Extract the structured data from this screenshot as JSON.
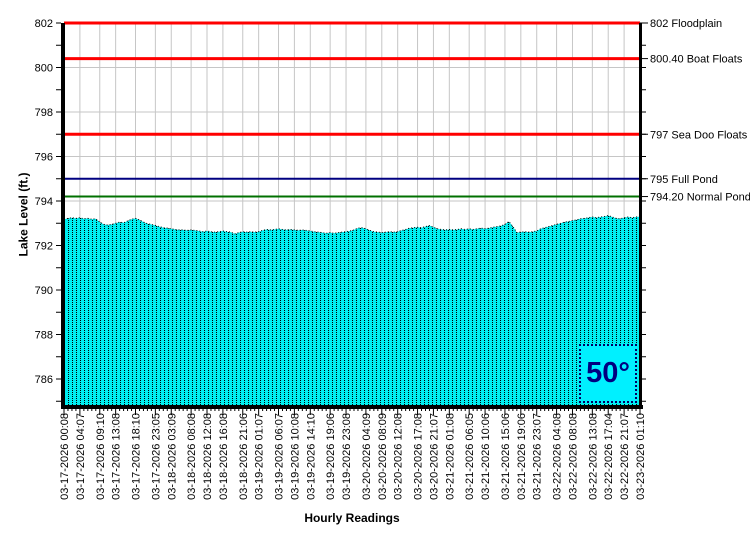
{
  "chart_data": {
    "type": "area",
    "title": "",
    "xlabel": "Hourly Readings",
    "ylabel": "Lake Level (ft.)",
    "ylim": [
      784.8,
      802
    ],
    "y_labeled_ticks": [
      786,
      788,
      790,
      792,
      794,
      796,
      798,
      800,
      802
    ],
    "y_minor_tick_step": 1,
    "grid": true,
    "legend": "none",
    "temperature": "50°",
    "x_tick_hours": [
      0,
      4,
      9,
      13,
      18,
      23,
      27,
      32,
      36,
      40,
      45,
      49,
      54,
      58,
      62,
      67,
      71,
      76,
      80,
      84,
      89,
      93,
      97,
      102,
      106,
      111,
      115,
      119,
      124,
      128,
      133,
      137,
      141,
      145
    ],
    "x_tick_labels": [
      "03-17-2026 00:08",
      "03-17-2026 04:07",
      "03-17-2026 09:10",
      "03-17-2026 13:08",
      "03-17-2026 18:10",
      "03-17-2026 23:05",
      "03-18-2026 03:09",
      "03-18-2026 08:08",
      "03-18-2026 12:08",
      "03-18-2026 16:08",
      "03-18-2026 21:06",
      "03-19-2026 01:07",
      "03-19-2026 06:07",
      "03-19-2026 10:08",
      "03-19-2026 14:10",
      "03-19-2026 19:06",
      "03-19-2026 23:08",
      "03-20-2026 04:09",
      "03-20-2026 08:09",
      "03-20-2026 12:08",
      "03-20-2026 17:08",
      "03-20-2026 21:07",
      "03-21-2026 01:08",
      "03-21-2026 06:05",
      "03-21-2026 10:06",
      "03-21-2026 15:06",
      "03-21-2026 19:06",
      "03-21-2026 23:07",
      "03-22-2026 04:08",
      "03-22-2026 08:08",
      "03-22-2026 13:08",
      "03-22-2026 17:04",
      "03-22-2026 21:07",
      "03-23-2026 01:10"
    ],
    "series": [
      {
        "name": "Lake Level (ft.)",
        "sampling": "hourly",
        "values": [
          793.18,
          793.22,
          793.25,
          793.22,
          793.25,
          793.2,
          793.22,
          793.18,
          793.2,
          793.05,
          792.95,
          792.92,
          792.95,
          793.0,
          793.05,
          793.02,
          793.1,
          793.18,
          793.22,
          793.15,
          793.05,
          792.98,
          792.95,
          792.9,
          792.85,
          792.8,
          792.78,
          792.75,
          792.72,
          792.7,
          792.7,
          792.68,
          792.7,
          792.68,
          792.65,
          792.62,
          792.65,
          792.62,
          792.6,
          792.62,
          792.65,
          792.62,
          792.6,
          792.52,
          792.58,
          792.62,
          792.6,
          792.62,
          792.6,
          792.62,
          792.68,
          792.72,
          792.7,
          792.72,
          792.75,
          792.72,
          792.7,
          792.72,
          792.7,
          792.68,
          792.7,
          792.68,
          792.65,
          792.62,
          792.6,
          792.58,
          792.55,
          792.58,
          792.55,
          792.58,
          792.6,
          792.62,
          792.65,
          792.7,
          792.78,
          792.8,
          792.75,
          792.68,
          792.62,
          792.6,
          792.58,
          792.6,
          792.62,
          792.6,
          792.62,
          792.68,
          792.72,
          792.78,
          792.8,
          792.82,
          792.8,
          792.85,
          792.9,
          792.82,
          792.75,
          792.72,
          792.7,
          792.72,
          792.7,
          792.72,
          792.75,
          792.72,
          792.75,
          792.72,
          792.75,
          792.78,
          792.75,
          792.78,
          792.82,
          792.85,
          792.88,
          792.95,
          793.08,
          792.85,
          792.58,
          792.6,
          792.62,
          792.6,
          792.62,
          792.65,
          792.75,
          792.8,
          792.85,
          792.9,
          792.95,
          793.0,
          793.05,
          793.08,
          793.12,
          793.15,
          793.2,
          793.22,
          793.25,
          793.28,
          793.25,
          793.28,
          793.3,
          793.35,
          793.28,
          793.22,
          793.2,
          793.25,
          793.28,
          793.25,
          793.28,
          793.3
        ]
      }
    ],
    "reference_lines": [
      {
        "value": 802,
        "label": "802 Floodplain",
        "color": "#FF0000",
        "width": 3
      },
      {
        "value": 800.4,
        "label": "800.40 Boat Floats",
        "color": "#FF0000",
        "width": 3
      },
      {
        "value": 797,
        "label": "797 Sea Doo Floats",
        "color": "#FF0000",
        "width": 3
      },
      {
        "value": 795,
        "label": "795 Full Pond",
        "color": "#000080",
        "width": 2
      },
      {
        "value": 794.2,
        "label": "794.20 Normal Pond",
        "color": "#007000",
        "width": 2
      }
    ],
    "colors": {
      "area_fill": "#00EEF0",
      "area_dots": "#000000",
      "grid": "#C6C6C6",
      "axis": "#000000",
      "badge_bg": "#00F0FF",
      "badge_text": "#000080"
    }
  }
}
